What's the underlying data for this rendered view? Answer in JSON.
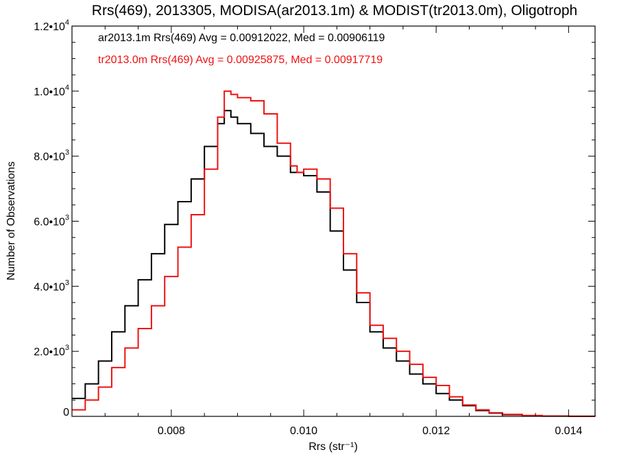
{
  "chart_data": {
    "type": "line",
    "title": "Rrs(469), 2013305, MODISA(ar2013.1m) & MODIST(tr2013.0m), Oligotroph",
    "xlabel": "Rrs (str⁻¹)",
    "ylabel": "Number of Observations",
    "xlim": [
      0.0065,
      0.0144
    ],
    "ylim": [
      0,
      12000
    ],
    "x_ticks": [
      {
        "value": 0.008,
        "label": "0.008"
      },
      {
        "value": 0.01,
        "label": "0.010"
      },
      {
        "value": 0.012,
        "label": "0.012"
      },
      {
        "value": 0.014,
        "label": "0.014"
      }
    ],
    "y_ticks": [
      {
        "value": 0,
        "mant": "0",
        "exp": ""
      },
      {
        "value": 2000,
        "mant": "2.0•10",
        "exp": "3"
      },
      {
        "value": 4000,
        "mant": "4.0•10",
        "exp": "3"
      },
      {
        "value": 6000,
        "mant": "6.0•10",
        "exp": "3"
      },
      {
        "value": 8000,
        "mant": "8.0•10",
        "exp": "3"
      },
      {
        "value": 10000,
        "mant": "1.0•10",
        "exp": "4"
      },
      {
        "value": 12000,
        "mant": "1.2•10",
        "exp": "4"
      }
    ],
    "legend": [
      {
        "text": "ar2013.1m Rrs(469) Avg = 0.00912022, Med = 0.00906119",
        "color": "#000000"
      },
      {
        "text": "tr2013.0m Rrs(469) Avg = 0.00925875, Med = 0.00917719",
        "color": "#ee1111"
      }
    ],
    "legend_placement": "top-left",
    "grid": false,
    "series": [
      {
        "color": "#000000",
        "points": [
          [
            0.0065,
            550
          ],
          [
            0.0067,
            1000
          ],
          [
            0.0069,
            1700
          ],
          [
            0.0071,
            2600
          ],
          [
            0.0073,
            3400
          ],
          [
            0.0075,
            4200
          ],
          [
            0.0077,
            5000
          ],
          [
            0.0079,
            5900
          ],
          [
            0.0081,
            6600
          ],
          [
            0.0083,
            7300
          ],
          [
            0.0085,
            8300
          ],
          [
            0.0087,
            9000
          ],
          [
            0.0088,
            9400
          ],
          [
            0.0089,
            9200
          ],
          [
            0.009,
            9000
          ],
          [
            0.0092,
            8700
          ],
          [
            0.0094,
            8300
          ],
          [
            0.0096,
            8000
          ],
          [
            0.0098,
            7500
          ],
          [
            0.01,
            7400
          ],
          [
            0.0102,
            6900
          ],
          [
            0.0104,
            5700
          ],
          [
            0.0106,
            4500
          ],
          [
            0.0108,
            3500
          ],
          [
            0.011,
            2600
          ],
          [
            0.0112,
            2100
          ],
          [
            0.0114,
            1700
          ],
          [
            0.0116,
            1300
          ],
          [
            0.0118,
            1000
          ],
          [
            0.012,
            700
          ],
          [
            0.0122,
            500
          ],
          [
            0.0124,
            330
          ],
          [
            0.0126,
            180
          ],
          [
            0.0128,
            100
          ],
          [
            0.013,
            50
          ],
          [
            0.0133,
            20
          ],
          [
            0.0136,
            8
          ],
          [
            0.014,
            3
          ],
          [
            0.0144,
            0
          ]
        ]
      },
      {
        "color": "#ee1111",
        "points": [
          [
            0.0065,
            200
          ],
          [
            0.0067,
            500
          ],
          [
            0.0069,
            900
          ],
          [
            0.0071,
            1500
          ],
          [
            0.0073,
            2100
          ],
          [
            0.0075,
            2700
          ],
          [
            0.0077,
            3400
          ],
          [
            0.0079,
            4300
          ],
          [
            0.0081,
            5200
          ],
          [
            0.0083,
            6200
          ],
          [
            0.0085,
            7600
          ],
          [
            0.0087,
            9200
          ],
          [
            0.0088,
            10000
          ],
          [
            0.0089,
            9900
          ],
          [
            0.009,
            9800
          ],
          [
            0.0092,
            9700
          ],
          [
            0.0094,
            9300
          ],
          [
            0.0096,
            8400
          ],
          [
            0.0098,
            7700
          ],
          [
            0.0099,
            7500
          ],
          [
            0.01,
            7600
          ],
          [
            0.0102,
            7300
          ],
          [
            0.0104,
            6400
          ],
          [
            0.0106,
            5000
          ],
          [
            0.0108,
            3800
          ],
          [
            0.011,
            2800
          ],
          [
            0.0112,
            2400
          ],
          [
            0.0114,
            2000
          ],
          [
            0.0116,
            1600
          ],
          [
            0.0118,
            1200
          ],
          [
            0.012,
            950
          ],
          [
            0.0122,
            600
          ],
          [
            0.0124,
            350
          ],
          [
            0.0126,
            200
          ],
          [
            0.0128,
            110
          ],
          [
            0.013,
            60
          ],
          [
            0.0133,
            25
          ],
          [
            0.0136,
            10
          ],
          [
            0.014,
            3
          ],
          [
            0.0144,
            0
          ]
        ]
      }
    ]
  }
}
